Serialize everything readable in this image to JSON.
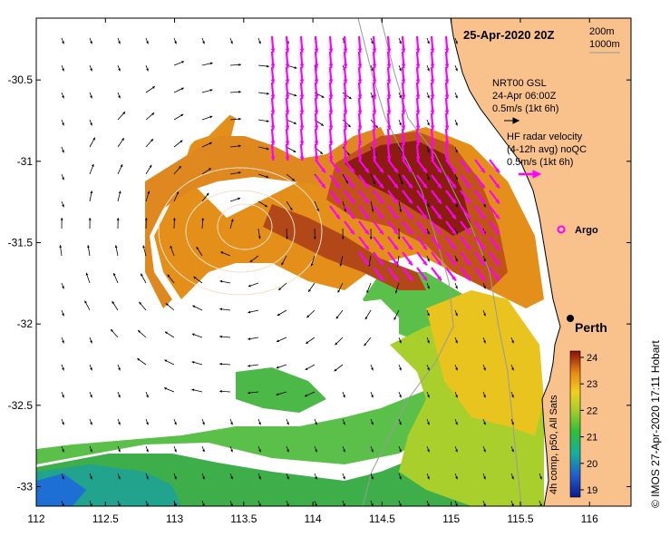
{
  "title": "25-Apr-2020 20Z",
  "depth_labels": [
    "200m",
    "1000m"
  ],
  "legend": {
    "gsl_title": "NRT00 GSL",
    "gsl_time": "24-Apr 06:00Z",
    "gsl_scale": "0.5m/s (1kt 6h)",
    "hf_title": "HF radar velocity",
    "hf_sub": "(4-12h avg) noQC",
    "hf_scale": "0.5m/s (1kt 6h)",
    "argo_label": "Argo"
  },
  "place": {
    "name": "Perth",
    "lon": 115.86,
    "lat": -31.95
  },
  "colorbar": {
    "ticks": [
      "24",
      "23",
      "22",
      "21",
      "20",
      "19"
    ],
    "label": "4h comp, p50, All Sats"
  },
  "credit": "© IMOS 27-Apr-2020 17:11 Hobart",
  "axes": {
    "x_ticks": [
      "112",
      "112.5",
      "113",
      "113.5",
      "114",
      "114.5",
      "115",
      "115.5",
      "116"
    ],
    "y_ticks": [
      "-30.5",
      "-31",
      "-31.5",
      "-32",
      "-32.5",
      "-33"
    ],
    "lon_range": [
      112,
      116.3
    ],
    "lat_range": [
      -33.12,
      -30.12
    ]
  },
  "colors": {
    "land": "#f9c18c",
    "hf_arrow": "#ff00ff",
    "gsl_arrow": "#000000",
    "contour": "#9a9a9a"
  }
}
